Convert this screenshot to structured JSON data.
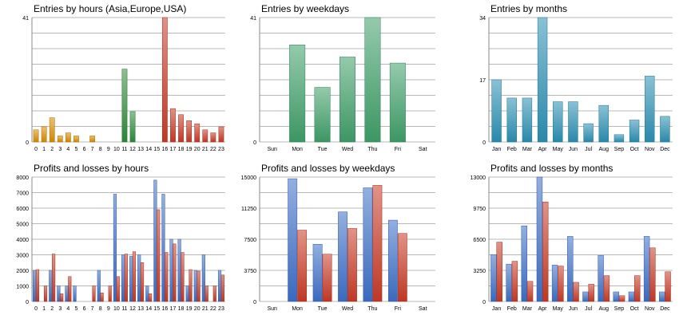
{
  "colors": {
    "orange": "#d98c00",
    "green": "#2e8b3a",
    "red": "#c83a26",
    "weekday_green": "#3f9e68",
    "teal": "#2b8fb3",
    "blue": "#3d6ec7",
    "grid": "#b8b8b8",
    "axis": "#888888"
  },
  "chart_data": [
    {
      "type": "bar",
      "title": "Entries by hours (Asia,Europe,USA)",
      "ylim": [
        0,
        41
      ],
      "yticks": [
        "0",
        "41"
      ],
      "categories": [
        "0",
        "1",
        "2",
        "3",
        "4",
        "5",
        "6",
        "7",
        "8",
        "9",
        "10",
        "11",
        "12",
        "13",
        "14",
        "15",
        "16",
        "17",
        "18",
        "19",
        "20",
        "21",
        "22",
        "23"
      ],
      "values": [
        4,
        5,
        8,
        2,
        3,
        2,
        0,
        2,
        0,
        0,
        0,
        24,
        10,
        0,
        0,
        0,
        41,
        11,
        9,
        7,
        6,
        4,
        3,
        5
      ],
      "bar_colors": [
        "orange",
        "orange",
        "orange",
        "orange",
        "orange",
        "orange",
        "orange",
        "orange",
        "orange",
        "orange",
        "green",
        "green",
        "green",
        "green",
        "green",
        "green",
        "red",
        "red",
        "red",
        "red",
        "red",
        "red",
        "red",
        "red"
      ]
    },
    {
      "type": "bar",
      "title": "Entries by weekdays",
      "ylim": [
        0,
        41
      ],
      "yticks": [
        "0",
        "41"
      ],
      "categories": [
        "Sun",
        "Mon",
        "Tue",
        "Wed",
        "Thu",
        "Fri",
        "Sat"
      ],
      "values": [
        0,
        32,
        18,
        28,
        41,
        26,
        0
      ],
      "bar_colors": [
        "weekday_green",
        "weekday_green",
        "weekday_green",
        "weekday_green",
        "weekday_green",
        "weekday_green",
        "weekday_green"
      ]
    },
    {
      "type": "bar",
      "title": "Entries by months",
      "ylim": [
        0,
        34
      ],
      "yticks": [
        "0",
        "17",
        "34"
      ],
      "categories": [
        "Jan",
        "Feb",
        "Mar",
        "Apr",
        "May",
        "Jun",
        "Jul",
        "Aug",
        "Sep",
        "Oct",
        "Nov",
        "Dec"
      ],
      "values": [
        17,
        12,
        12,
        34,
        11,
        11,
        5,
        10,
        2,
        6,
        18,
        7
      ],
      "bar_colors": [
        "teal",
        "teal",
        "teal",
        "teal",
        "teal",
        "teal",
        "teal",
        "teal",
        "teal",
        "teal",
        "teal",
        "teal"
      ]
    },
    {
      "type": "bar",
      "title": "Profits and losses by hours",
      "ylim": [
        0,
        8000
      ],
      "yticks": [
        "0",
        "1000",
        "2000",
        "3000",
        "4000",
        "5000",
        "6000",
        "7000",
        "8000"
      ],
      "categories": [
        "0",
        "1",
        "2",
        "3",
        "4",
        "5",
        "6",
        "7",
        "8",
        "9",
        "10",
        "11",
        "12",
        "13",
        "14",
        "15",
        "16",
        "17",
        "18",
        "19",
        "20",
        "21",
        "22",
        "23"
      ],
      "series": [
        {
          "values": [
            2000,
            0,
            2000,
            1000,
            1000,
            1000,
            0,
            0,
            2000,
            0,
            6900,
            3000,
            2900,
            3000,
            1000,
            7800,
            6900,
            4000,
            4000,
            1000,
            2000,
            3000,
            0,
            2000
          ],
          "color": "blue"
        },
        {
          "values": [
            2050,
            1000,
            3050,
            500,
            1600,
            0,
            0,
            1000,
            550,
            1000,
            1600,
            3050,
            3200,
            2500,
            500,
            5900,
            3150,
            3700,
            3150,
            2050,
            1950,
            1000,
            1000,
            1700
          ],
          "color": "red"
        }
      ]
    },
    {
      "type": "bar",
      "title": "Profits and losses by weekdays",
      "ylim": [
        0,
        15000
      ],
      "yticks": [
        "0",
        "3750",
        "7500",
        "11250",
        "15000"
      ],
      "categories": [
        "Sun",
        "Mon",
        "Tue",
        "Wed",
        "Thu",
        "Fri",
        "Sat"
      ],
      "series": [
        {
          "values": [
            0,
            14800,
            6900,
            10800,
            13700,
            9800,
            0
          ],
          "color": "blue"
        },
        {
          "values": [
            0,
            8600,
            5700,
            8800,
            14000,
            8200,
            0
          ],
          "color": "red"
        }
      ]
    },
    {
      "type": "bar",
      "title": "Profits and losses by months",
      "ylim": [
        0,
        13000
      ],
      "yticks": [
        "0",
        "3250",
        "6500",
        "9750",
        "13000"
      ],
      "categories": [
        "Jan",
        "Feb",
        "Mar",
        "Apr",
        "May",
        "Jun",
        "Jul",
        "Aug",
        "Sep",
        "Oct",
        "Nov",
        "Dec"
      ],
      "series": [
        {
          "values": [
            4900,
            3900,
            7900,
            13000,
            3800,
            6800,
            1000,
            4800,
            1000,
            1000,
            6800,
            1000
          ],
          "color": "blue"
        },
        {
          "values": [
            6200,
            4200,
            2100,
            10400,
            3700,
            2000,
            1800,
            2700,
            600,
            2700,
            5600,
            3100
          ],
          "color": "red"
        }
      ]
    }
  ]
}
